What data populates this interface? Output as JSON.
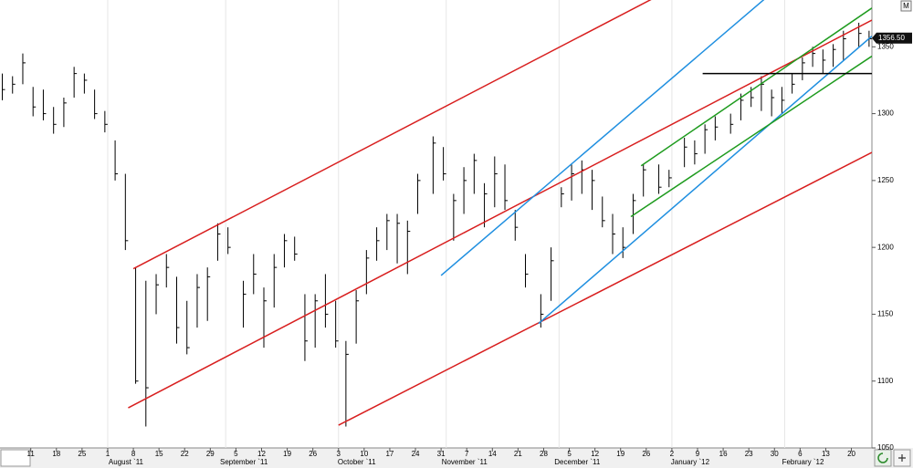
{
  "chart_data": {
    "type": "ohlc",
    "color": "#000000",
    "grid": true,
    "grid_color": "#e6e6e6",
    "xlim": [
      "2011-07-01",
      "2012-02-24"
    ],
    "ylim": [
      1050,
      1385
    ],
    "yticks": [
      1050,
      1100,
      1150,
      1200,
      1250,
      1300,
      1350
    ],
    "xticks": [
      {
        "value": "2011-07-11",
        "label": "11"
      },
      {
        "value": "2011-07-18",
        "label": "18"
      },
      {
        "value": "2011-07-25",
        "label": "25"
      },
      {
        "value": "2011-08-01",
        "label": "1"
      },
      {
        "value": "2011-08-08",
        "label": "8"
      },
      {
        "value": "2011-08-15",
        "label": "15"
      },
      {
        "value": "2011-08-22",
        "label": "22"
      },
      {
        "value": "2011-08-29",
        "label": "29"
      },
      {
        "value": "2011-09-05",
        "label": "5"
      },
      {
        "value": "2011-09-12",
        "label": "12"
      },
      {
        "value": "2011-09-19",
        "label": "19"
      },
      {
        "value": "2011-09-26",
        "label": "26"
      },
      {
        "value": "2011-10-03",
        "label": "3"
      },
      {
        "value": "2011-10-10",
        "label": "10"
      },
      {
        "value": "2011-10-17",
        "label": "17"
      },
      {
        "value": "2011-10-24",
        "label": "24"
      },
      {
        "value": "2011-10-31",
        "label": "31"
      },
      {
        "value": "2011-11-07",
        "label": "7"
      },
      {
        "value": "2011-11-14",
        "label": "14"
      },
      {
        "value": "2011-11-21",
        "label": "21"
      },
      {
        "value": "2011-11-28",
        "label": "28"
      },
      {
        "value": "2011-12-05",
        "label": "5"
      },
      {
        "value": "2011-12-12",
        "label": "12"
      },
      {
        "value": "2011-12-19",
        "label": "19"
      },
      {
        "value": "2011-12-26",
        "label": "26"
      },
      {
        "value": "2012-01-02",
        "label": "2"
      },
      {
        "value": "2012-01-09",
        "label": "9"
      },
      {
        "value": "2012-01-16",
        "label": "16"
      },
      {
        "value": "2012-01-23",
        "label": "23"
      },
      {
        "value": "2012-01-30",
        "label": "30"
      },
      {
        "value": "2012-02-06",
        "label": "6"
      },
      {
        "value": "2012-02-13",
        "label": "13"
      },
      {
        "value": "2012-02-20",
        "label": "20"
      }
    ],
    "month_labels": [
      {
        "value": "2011-08-01",
        "label": "August `11"
      },
      {
        "value": "2011-09-01",
        "label": "September `11"
      },
      {
        "value": "2011-10-01",
        "label": "October `11"
      },
      {
        "value": "2011-11-01",
        "label": "November `11"
      },
      {
        "value": "2011-12-01",
        "label": "December `11"
      },
      {
        "value": "2012-01-01",
        "label": "January `12"
      },
      {
        "value": "2012-02-01",
        "label": "February `12"
      }
    ],
    "last_price": {
      "value": 1356.5,
      "label": "1356.50"
    },
    "corner_label": "M",
    "x": [
      "2011-07-01",
      "2011-07-05",
      "2011-07-07",
      "2011-07-11",
      "2011-07-13",
      "2011-07-15",
      "2011-07-19",
      "2011-07-21",
      "2011-07-25",
      "2011-07-27",
      "2011-07-29",
      "2011-08-02",
      "2011-08-04",
      "2011-08-08",
      "2011-08-10",
      "2011-08-12",
      "2011-08-16",
      "2011-08-18",
      "2011-08-22",
      "2011-08-24",
      "2011-08-26",
      "2011-08-30",
      "2011-09-01",
      "2011-09-06",
      "2011-09-08",
      "2011-09-12",
      "2011-09-14",
      "2011-09-16",
      "2011-09-20",
      "2011-09-22",
      "2011-09-26",
      "2011-09-28",
      "2011-09-30",
      "2011-10-04",
      "2011-10-06",
      "2011-10-10",
      "2011-10-12",
      "2011-10-14",
      "2011-10-18",
      "2011-10-20",
      "2011-10-24",
      "2011-10-27",
      "2011-10-31",
      "2011-11-02",
      "2011-11-04",
      "2011-11-08",
      "2011-11-10",
      "2011-11-14",
      "2011-11-16",
      "2011-11-18",
      "2011-11-22",
      "2011-11-25",
      "2011-11-29",
      "2011-12-01",
      "2011-12-05",
      "2011-12-07",
      "2011-12-09",
      "2011-12-13",
      "2011-12-15",
      "2011-12-19",
      "2011-12-21",
      "2011-12-23",
      "2011-12-28",
      "2011-12-30",
      "2012-01-04",
      "2012-01-06",
      "2012-01-10",
      "2012-01-12",
      "2012-01-17",
      "2012-01-19",
      "2012-01-23",
      "2012-01-25",
      "2012-01-27",
      "2012-01-31",
      "2012-02-02",
      "2012-02-06",
      "2012-02-08",
      "2012-02-10",
      "2012-02-14",
      "2012-02-16",
      "2012-02-21",
      "2012-02-23"
    ],
    "high": [
      1330,
      1328,
      1345,
      1320,
      1318,
      1305,
      1312,
      1335,
      1330,
      1318,
      1302,
      1280,
      1255,
      1185,
      1175,
      1180,
      1195,
      1178,
      1160,
      1180,
      1185,
      1218,
      1215,
      1175,
      1195,
      1170,
      1195,
      1210,
      1208,
      1165,
      1165,
      1180,
      1160,
      1130,
      1168,
      1198,
      1215,
      1225,
      1225,
      1220,
      1255,
      1283,
      1275,
      1240,
      1260,
      1270,
      1248,
      1268,
      1262,
      1228,
      1195,
      1165,
      1200,
      1245,
      1262,
      1265,
      1258,
      1238,
      1225,
      1215,
      1240,
      1262,
      1262,
      1258,
      1282,
      1280,
      1292,
      1298,
      1300,
      1315,
      1320,
      1328,
      1318,
      1320,
      1330,
      1342,
      1350,
      1348,
      1352,
      1362,
      1368,
      1362
    ],
    "low": [
      1310,
      1315,
      1322,
      1298,
      1295,
      1285,
      1290,
      1312,
      1315,
      1296,
      1286,
      1250,
      1198,
      1098,
      1066,
      1150,
      1170,
      1128,
      1120,
      1140,
      1145,
      1190,
      1195,
      1140,
      1165,
      1125,
      1155,
      1185,
      1190,
      1115,
      1125,
      1140,
      1125,
      1066,
      1128,
      1165,
      1190,
      1198,
      1188,
      1180,
      1225,
      1240,
      1250,
      1205,
      1225,
      1240,
      1215,
      1230,
      1228,
      1205,
      1170,
      1140,
      1160,
      1230,
      1235,
      1240,
      1228,
      1215,
      1195,
      1192,
      1210,
      1238,
      1240,
      1245,
      1260,
      1262,
      1270,
      1280,
      1285,
      1295,
      1305,
      1302,
      1298,
      1300,
      1315,
      1325,
      1335,
      1330,
      1335,
      1340,
      1350,
      1350
    ],
    "close": [
      1318,
      1322,
      1338,
      1305,
      1300,
      1292,
      1308,
      1330,
      1325,
      1300,
      1292,
      1255,
      1205,
      1100,
      1095,
      1172,
      1185,
      1140,
      1125,
      1170,
      1178,
      1210,
      1200,
      1165,
      1180,
      1160,
      1185,
      1205,
      1195,
      1130,
      1160,
      1150,
      1130,
      1120,
      1160,
      1192,
      1205,
      1220,
      1218,
      1212,
      1250,
      1278,
      1255,
      1235,
      1250,
      1265,
      1240,
      1255,
      1235,
      1215,
      1180,
      1150,
      1190,
      1240,
      1255,
      1258,
      1250,
      1220,
      1210,
      1200,
      1235,
      1258,
      1245,
      1252,
      1275,
      1270,
      1288,
      1290,
      1292,
      1310,
      1312,
      1322,
      1312,
      1310,
      1322,
      1338,
      1345,
      1340,
      1348,
      1356,
      1360,
      1356
    ],
    "trendlines": [
      {
        "color": "#d81e1e",
        "x": [
          "2011-08-08",
          "2011-12-27"
        ],
        "y": [
          1184,
          1385.5
        ]
      },
      {
        "color": "#d81e1e",
        "x": [
          "2011-08-05",
          "2012-02-24"
        ],
        "y": [
          1080,
          1370
        ]
      },
      {
        "color": "#d81e1e",
        "x": [
          "2011-10-03",
          "2012-02-24"
        ],
        "y": [
          1067,
          1271
        ]
      },
      {
        "color": "#1f8fe0",
        "x": [
          "2011-10-31",
          "2012-01-26"
        ],
        "y": [
          1179,
          1385.5
        ]
      },
      {
        "color": "#1f8fe0",
        "x": [
          "2011-11-25",
          "2012-02-24"
        ],
        "y": [
          1143,
          1358
        ]
      },
      {
        "color": "#1e9b1e",
        "x": [
          "2011-12-23",
          "2012-02-24"
        ],
        "y": [
          1261,
          1379
        ]
      },
      {
        "color": "#1e9b1e",
        "x": [
          "2011-12-21",
          "2012-02-24"
        ],
        "y": [
          1223,
          1343
        ]
      },
      {
        "color": "#000000",
        "x": [
          "2012-01-10",
          "2012-02-24"
        ],
        "y": [
          1330,
          1330
        ]
      }
    ]
  }
}
